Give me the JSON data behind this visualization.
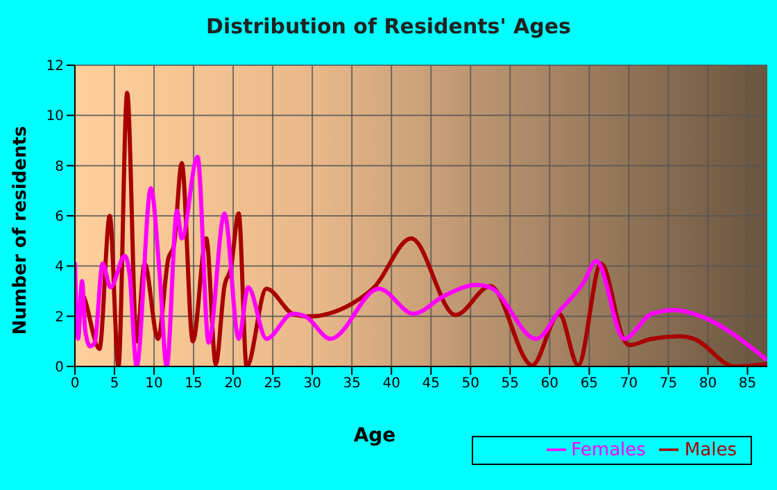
{
  "chart_data": {
    "type": "line",
    "title": "Distribution of Residents' Ages",
    "xlabel": "Age",
    "ylabel": "Number of residents",
    "xlim": [
      0,
      87.5
    ],
    "xticks": [
      0,
      5,
      10,
      15,
      20,
      25,
      30,
      35,
      40,
      45,
      50,
      55,
      60,
      65,
      70,
      75,
      80,
      85
    ],
    "ylim": [
      0,
      12
    ],
    "yticks": [
      0,
      2,
      4,
      6,
      8,
      10,
      12
    ],
    "grid": true,
    "legend": "bottom right",
    "marker": "none",
    "line_style": "solid",
    "series": [
      {
        "name": "Males",
        "color": "#a80000",
        "x": [
          0,
          0.4,
          0.8,
          3.1,
          4.4,
          5.5,
          6.6,
          7.8,
          8.8,
          10.5,
          11.8,
          12.5,
          13.5,
          14.9,
          16.6,
          17.8,
          18.9,
          19.7,
          20.7,
          21.7,
          24.2,
          27.5,
          29.1,
          30,
          32,
          35,
          37.8,
          42.5,
          48.1,
          52.5,
          57.8,
          61.2,
          63.6,
          66.5,
          69.4,
          70,
          72.9,
          76.4,
          78.2,
          83.4,
          87.5
        ],
        "values": [
          3.1,
          1.2,
          2.9,
          0.7,
          6,
          0,
          10.9,
          1,
          4.1,
          1.1,
          4.3,
          4.8,
          8.1,
          1,
          5.1,
          0.1,
          3.2,
          3.9,
          6.1,
          0,
          3.1,
          2.1,
          2,
          2,
          2.1,
          2.5,
          3.15,
          5.1,
          2.05,
          3.2,
          0.05,
          2.1,
          0.05,
          4.1,
          1.05,
          0.85,
          1.1,
          1.2,
          1.1,
          0,
          0.1
        ]
      },
      {
        "name": "Females",
        "color": "#ff00ff",
        "x": [
          0,
          0.4,
          0.9,
          1.3,
          1.9,
          2.5,
          3.5,
          4.5,
          6.3,
          6.9,
          7.8,
          9.6,
          10.7,
          11.6,
          12.9,
          13.5,
          15.5,
          16.9,
          18.9,
          20.7,
          21.9,
          24.2,
          27.5,
          29.1,
          32.3,
          38.4,
          42.8,
          46.6,
          50.7,
          52.5,
          58.3,
          61.2,
          64.2,
          65.9,
          69.4,
          72.9,
          75.8,
          78.2,
          87.5
        ],
        "values": [
          4.15,
          1.1,
          3.4,
          1.45,
          0.8,
          0.95,
          4.1,
          3.15,
          4.4,
          3.7,
          0,
          7.1,
          3.7,
          0,
          6.2,
          5.1,
          8.35,
          0.95,
          6.1,
          1.1,
          3.15,
          1.1,
          2.1,
          2,
          1.1,
          3.1,
          2.1,
          2.8,
          3.25,
          3.15,
          1.1,
          2.2,
          3.3,
          4.2,
          1.1,
          2.1,
          2.25,
          2.1,
          0.25
        ]
      }
    ]
  }
}
